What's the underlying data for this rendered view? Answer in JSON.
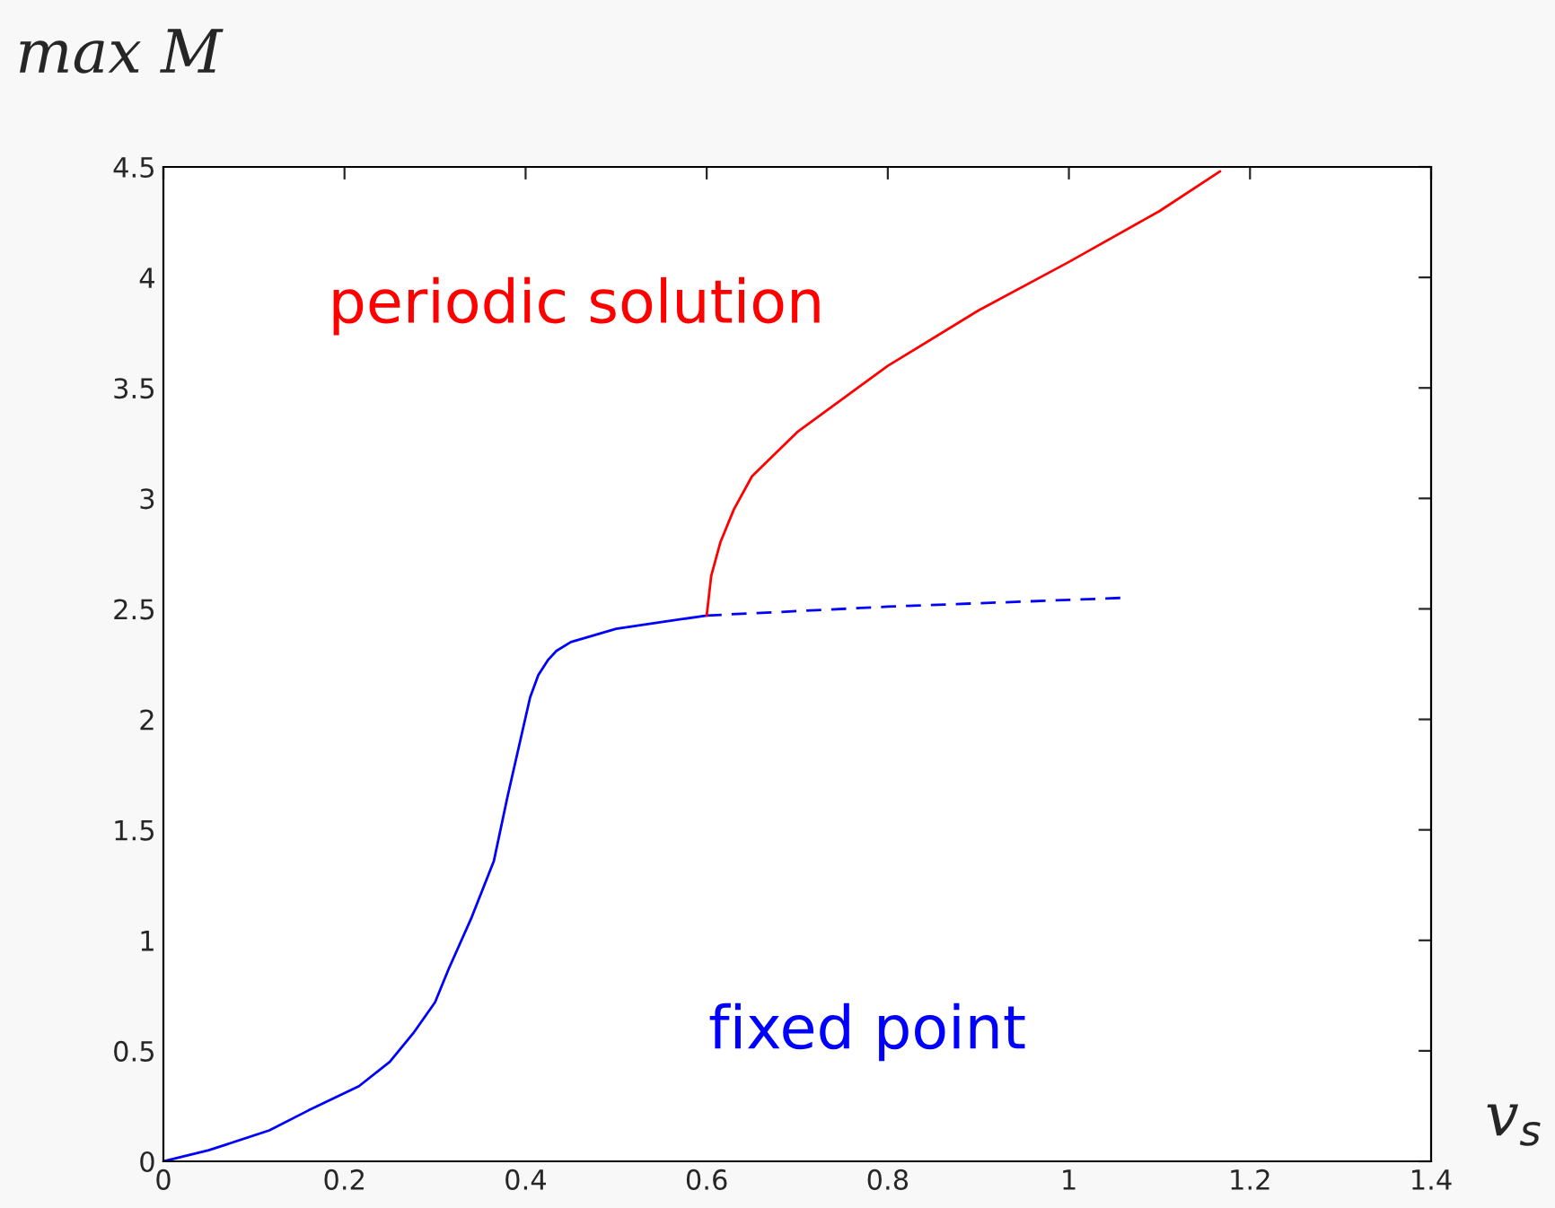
{
  "chart_data": {
    "type": "line",
    "ylabel": "max M",
    "xlabel": "v$_{s}$",
    "xlim": [
      0,
      1.4
    ],
    "ylim": [
      0,
      4.5
    ],
    "xticks": [
      0,
      0.2,
      0.4,
      0.6,
      0.8,
      1,
      1.2,
      1.4
    ],
    "yticks": [
      0,
      0.5,
      1,
      1.5,
      2,
      2.5,
      3,
      3.5,
      4,
      4.5
    ],
    "grid": false,
    "legend": false,
    "series": [
      {
        "name": "fixed point",
        "color": "#0000ff",
        "line_style": "solid",
        "x": [
          0,
          0.05,
          0.117,
          0.16,
          0.216,
          0.25,
          0.276,
          0.3,
          0.315,
          0.34,
          0.365,
          0.38,
          0.395,
          0.405,
          0.414,
          0.425,
          0.434,
          0.45,
          0.5,
          0.55,
          0.6
        ],
        "values": [
          0,
          0.05,
          0.14,
          0.23,
          0.34,
          0.45,
          0.58,
          0.72,
          0.87,
          1.1,
          1.36,
          1.65,
          1.92,
          2.1,
          2.2,
          2.27,
          2.31,
          2.35,
          2.41,
          2.44,
          2.47
        ]
      },
      {
        "color": "#0000ff",
        "line_style": "dashed",
        "x": [
          0.6,
          0.8,
          1.06
        ],
        "values": [
          2.47,
          2.51,
          2.55
        ]
      },
      {
        "name": "periodic solution",
        "color": "#ff0000",
        "line_style": "solid",
        "x": [
          0.6,
          0.605,
          0.615,
          0.63,
          0.65,
          0.7,
          0.8,
          0.9,
          1.0,
          1.1,
          1.167
        ],
        "values": [
          2.47,
          2.65,
          2.8,
          2.95,
          3.1,
          3.3,
          3.6,
          3.85,
          4.07,
          4.3,
          4.48
        ]
      }
    ]
  }
}
